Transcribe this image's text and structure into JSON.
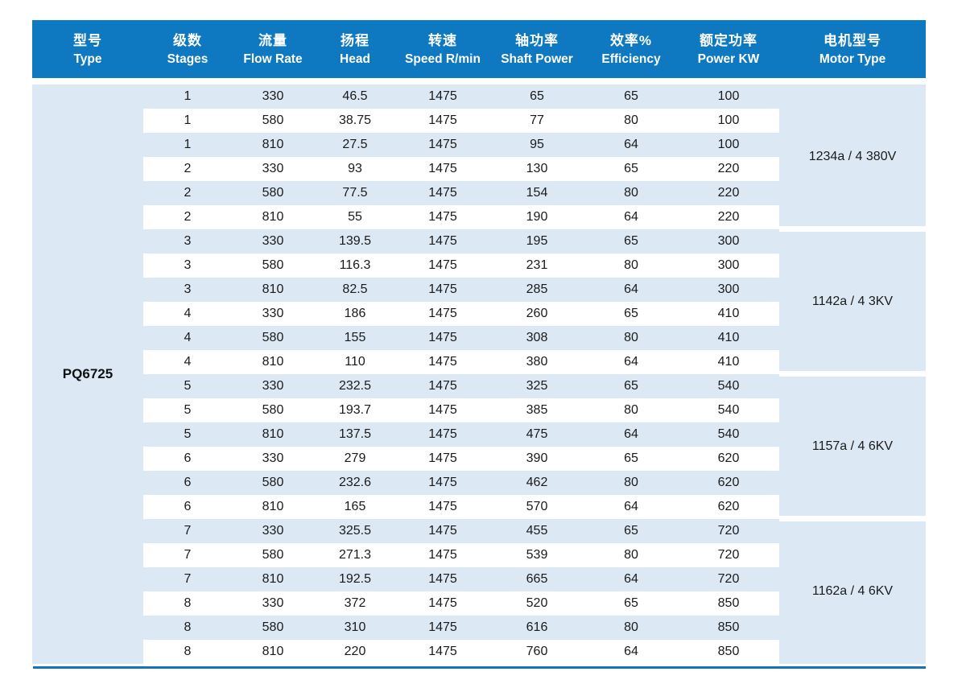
{
  "theme": {
    "header_bg": "#0e79c0",
    "header_text": "#ffffff",
    "panel_bg": "#dce9f5",
    "row_alt_bg": "#ffffff",
    "body_text": "#1a1a1a",
    "bottom_line": "#1272bb"
  },
  "table": {
    "type_value": "PQ6725",
    "columns": [
      {
        "zh": "型号",
        "en": "Type"
      },
      {
        "zh": "级数",
        "en": "Stages"
      },
      {
        "zh": "流量",
        "en": "Flow Rate"
      },
      {
        "zh": "扬程",
        "en": "Head"
      },
      {
        "zh": "转速",
        "en": "Speed R/min"
      },
      {
        "zh": "轴功率",
        "en": "Shaft Power"
      },
      {
        "zh": "效率%",
        "en": "Efficiency"
      },
      {
        "zh": "额定功率",
        "en": "Power KW"
      },
      {
        "zh": "电机型号",
        "en": "Motor Type"
      }
    ],
    "rows": [
      [
        "1",
        "330",
        "46.5",
        "1475",
        "65",
        "65",
        "100"
      ],
      [
        "1",
        "580",
        "38.75",
        "1475",
        "77",
        "80",
        "100"
      ],
      [
        "1",
        "810",
        "27.5",
        "1475",
        "95",
        "64",
        "100"
      ],
      [
        "2",
        "330",
        "93",
        "1475",
        "130",
        "65",
        "220"
      ],
      [
        "2",
        "580",
        "77.5",
        "1475",
        "154",
        "80",
        "220"
      ],
      [
        "2",
        "810",
        "55",
        "1475",
        "190",
        "64",
        "220"
      ],
      [
        "3",
        "330",
        "139.5",
        "1475",
        "195",
        "65",
        "300"
      ],
      [
        "3",
        "580",
        "116.3",
        "1475",
        "231",
        "80",
        "300"
      ],
      [
        "3",
        "810",
        "82.5",
        "1475",
        "285",
        "64",
        "300"
      ],
      [
        "4",
        "330",
        "186",
        "1475",
        "260",
        "65",
        "410"
      ],
      [
        "4",
        "580",
        "155",
        "1475",
        "308",
        "80",
        "410"
      ],
      [
        "4",
        "810",
        "110",
        "1475",
        "380",
        "64",
        "410"
      ],
      [
        "5",
        "330",
        "232.5",
        "1475",
        "325",
        "65",
        "540"
      ],
      [
        "5",
        "580",
        "193.7",
        "1475",
        "385",
        "80",
        "540"
      ],
      [
        "5",
        "810",
        "137.5",
        "1475",
        "475",
        "64",
        "540"
      ],
      [
        "6",
        "330",
        "279",
        "1475",
        "390",
        "65",
        "620"
      ],
      [
        "6",
        "580",
        "232.6",
        "1475",
        "462",
        "80",
        "620"
      ],
      [
        "6",
        "810",
        "165",
        "1475",
        "570",
        "64",
        "620"
      ],
      [
        "7",
        "330",
        "325.5",
        "1475",
        "455",
        "65",
        "720"
      ],
      [
        "7",
        "580",
        "271.3",
        "1475",
        "539",
        "80",
        "720"
      ],
      [
        "7",
        "810",
        "192.5",
        "1475",
        "665",
        "64",
        "720"
      ],
      [
        "8",
        "330",
        "372",
        "1475",
        "520",
        "65",
        "850"
      ],
      [
        "8",
        "580",
        "310",
        "1475",
        "616",
        "80",
        "850"
      ],
      [
        "8",
        "810",
        "220",
        "1475",
        "760",
        "64",
        "850"
      ]
    ],
    "motor_types": [
      "1234a / 4  380V",
      "1142a / 4  3KV",
      "1157a / 4  6KV",
      "1162a / 4  6KV"
    ]
  }
}
